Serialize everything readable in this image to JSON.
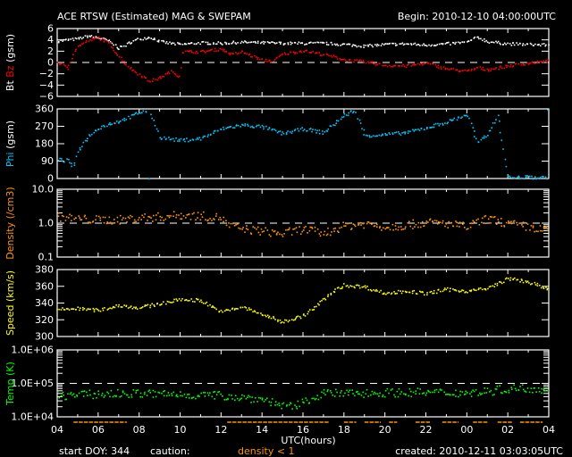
{
  "header": {
    "title": "ACE RTSW (Estimated) MAG & SWEPAM",
    "begin": "Begin: 2010-12-10 04:00:00UTC"
  },
  "footer": {
    "start_doy": "start DOY: 344",
    "caution_label": "caution:",
    "caution_text": "density < 1",
    "created": "created: 2010-12-11 03:03:05UTC"
  },
  "colors": {
    "bt": "#ffffff",
    "bz": "#ff0000",
    "phi": "#00c8ff",
    "density": "#ff9600",
    "speed": "#ffff00",
    "temp": "#00ff00"
  },
  "chart_data": [
    {
      "type": "scatter",
      "title": "Bt / Bz",
      "ylabel_parts": [
        "Bt",
        "Bz",
        "(gsm)"
      ],
      "ylim": [
        -6,
        6
      ],
      "yticks": [
        "6",
        "4",
        "2",
        "0",
        "−2",
        "−4",
        "−6"
      ],
      "dashed_ref": 0,
      "series": [
        {
          "name": "Bt",
          "x": [
            0,
            0.5,
            1,
            1.5,
            2,
            2.5,
            3,
            3.5,
            4,
            4.5,
            5,
            5.5,
            6,
            7,
            8,
            9,
            10,
            11,
            12,
            13,
            14,
            15,
            16,
            17,
            18,
            19,
            20,
            20.5,
            21,
            22,
            23,
            24
          ],
          "y": [
            3.9,
            4.1,
            4.3,
            4.8,
            4.5,
            3.9,
            2.6,
            3.6,
            4.3,
            4.6,
            3.8,
            3.5,
            3.3,
            3.6,
            3.5,
            3.7,
            3.6,
            3.5,
            3.5,
            3.5,
            3.3,
            3.0,
            3.3,
            3.4,
            3.2,
            3.4,
            3.7,
            4.6,
            3.8,
            3.4,
            3.3,
            3.2
          ]
        },
        {
          "name": "Bz",
          "x": [
            0,
            0.5,
            0.8,
            1,
            1.5,
            2,
            2.5,
            3,
            3.5,
            4,
            4.5,
            5,
            5.5,
            6,
            6.05,
            7,
            8,
            8.5,
            9,
            10,
            10.5,
            11,
            12,
            13,
            14,
            15,
            16,
            17,
            18,
            19,
            20,
            20.5,
            21,
            22,
            23,
            24
          ],
          "y": [
            0.2,
            -1,
            2,
            3,
            4,
            4.5,
            3.5,
            1.2,
            -0.8,
            -2,
            -3.2,
            -2.6,
            -1.5,
            -2.4,
            2,
            2,
            2.5,
            1.5,
            2,
            0.5,
            0.4,
            1.6,
            2.2,
            1.5,
            0.6,
            0.2,
            -0.4,
            -0.5,
            0,
            -1,
            -1.5,
            -0.8,
            -1.2,
            -0.5,
            0,
            0.4
          ]
        }
      ]
    },
    {
      "type": "scatter",
      "title": "Phi",
      "ylabel_parts": [
        "Phi",
        "(gsm)"
      ],
      "ylim": [
        0,
        360
      ],
      "yticks": [
        "360",
        "270",
        "180",
        "90",
        "0"
      ],
      "series": [
        {
          "name": "Phi",
          "x": [
            0,
            0.5,
            0.8,
            1,
            1.5,
            2,
            2.5,
            3,
            3.5,
            4,
            4.5,
            5,
            6,
            7,
            8,
            9,
            10,
            11,
            12,
            13,
            14,
            14.5,
            15,
            16,
            17,
            18,
            19,
            20,
            20.5,
            21,
            21.5,
            22,
            23,
            24
          ],
          "y": [
            100,
            95,
            60,
            150,
            220,
            265,
            285,
            300,
            320,
            345,
            355,
            215,
            200,
            210,
            260,
            280,
            270,
            235,
            260,
            240,
            330,
            355,
            225,
            230,
            240,
            265,
            295,
            335,
            185,
            230,
            330,
            8,
            10,
            6
          ]
        }
      ]
    },
    {
      "type": "scatter",
      "title": "Density",
      "ylabel_parts": [
        "Density",
        "(/cm3)"
      ],
      "ylim": [
        0.1,
        10
      ],
      "log": true,
      "yticks": [
        "10.0",
        "1.0",
        "0.1"
      ],
      "dashed_ref": 1.0,
      "series": [
        {
          "name": "Density",
          "x": [
            0,
            1,
            2,
            3,
            4,
            5,
            6,
            7,
            8,
            8.3,
            9,
            10,
            11,
            12,
            13,
            14,
            15,
            16,
            17,
            18,
            19,
            20,
            21,
            22,
            23,
            24
          ],
          "y": [
            1.6,
            1.4,
            1.3,
            1.3,
            1.5,
            1.6,
            1.8,
            1.7,
            1.5,
            0.9,
            0.7,
            0.6,
            0.5,
            0.7,
            0.5,
            0.85,
            1.0,
            0.8,
            0.9,
            1.1,
            1.0,
            0.8,
            1.4,
            1.0,
            0.8,
            0.6
          ]
        }
      ]
    },
    {
      "type": "scatter",
      "title": "Speed",
      "ylabel_parts": [
        "Speed",
        "(km/s)"
      ],
      "ylim": [
        300,
        380
      ],
      "yticks": [
        "380",
        "360",
        "340",
        "320",
        "300"
      ],
      "series": [
        {
          "name": "Speed",
          "x": [
            0,
            1,
            2,
            3,
            4,
            5,
            6,
            7,
            8,
            9,
            10,
            11,
            11.5,
            12,
            13,
            13.5,
            14,
            15,
            16,
            17,
            18,
            19,
            20,
            21,
            22,
            23,
            24
          ],
          "y": [
            333,
            334,
            332,
            338,
            335,
            340,
            345,
            344,
            330,
            336,
            327,
            318,
            322,
            325,
            345,
            355,
            362,
            360,
            352,
            355,
            352,
            357,
            355,
            358,
            370,
            366,
            356
          ]
        }
      ]
    },
    {
      "type": "scatter",
      "title": "Temp",
      "ylabel_parts": [
        "Temp",
        "(K)"
      ],
      "ylim": [
        10000,
        1000000
      ],
      "log": true,
      "yticks": [
        "1.0E+06",
        "1.0E+05",
        "1.0E+04"
      ],
      "dashed_ref": 100000,
      "series": [
        {
          "name": "Temp",
          "x": [
            0,
            2,
            4,
            6,
            8,
            10,
            11,
            11.5,
            12,
            13,
            14,
            16,
            18,
            20,
            21,
            22,
            23,
            24
          ],
          "y": [
            45000,
            50000,
            52000,
            48000,
            45000,
            35000,
            22000,
            20000,
            28000,
            52000,
            52000,
            55000,
            56000,
            54000,
            60000,
            72000,
            75000,
            70000
          ]
        }
      ]
    }
  ],
  "xaxis": {
    "label": "UTC(hours)",
    "ticks": [
      "04",
      "06",
      "08",
      "10",
      "12",
      "14",
      "16",
      "18",
      "20",
      "22",
      "00",
      "02",
      "04"
    ],
    "range_hours": [
      0,
      24
    ]
  },
  "caution_ranges_hours": [
    [
      0.8,
      3.4
    ],
    [
      8.3,
      13.3
    ],
    [
      14,
      14.6
    ],
    [
      15,
      15.8
    ],
    [
      16.2,
      16.6
    ],
    [
      17.5,
      18.2
    ],
    [
      18.8,
      19.6
    ],
    [
      20.3,
      21
    ],
    [
      21.5,
      22.2
    ],
    [
      22.6,
      23.7
    ]
  ]
}
